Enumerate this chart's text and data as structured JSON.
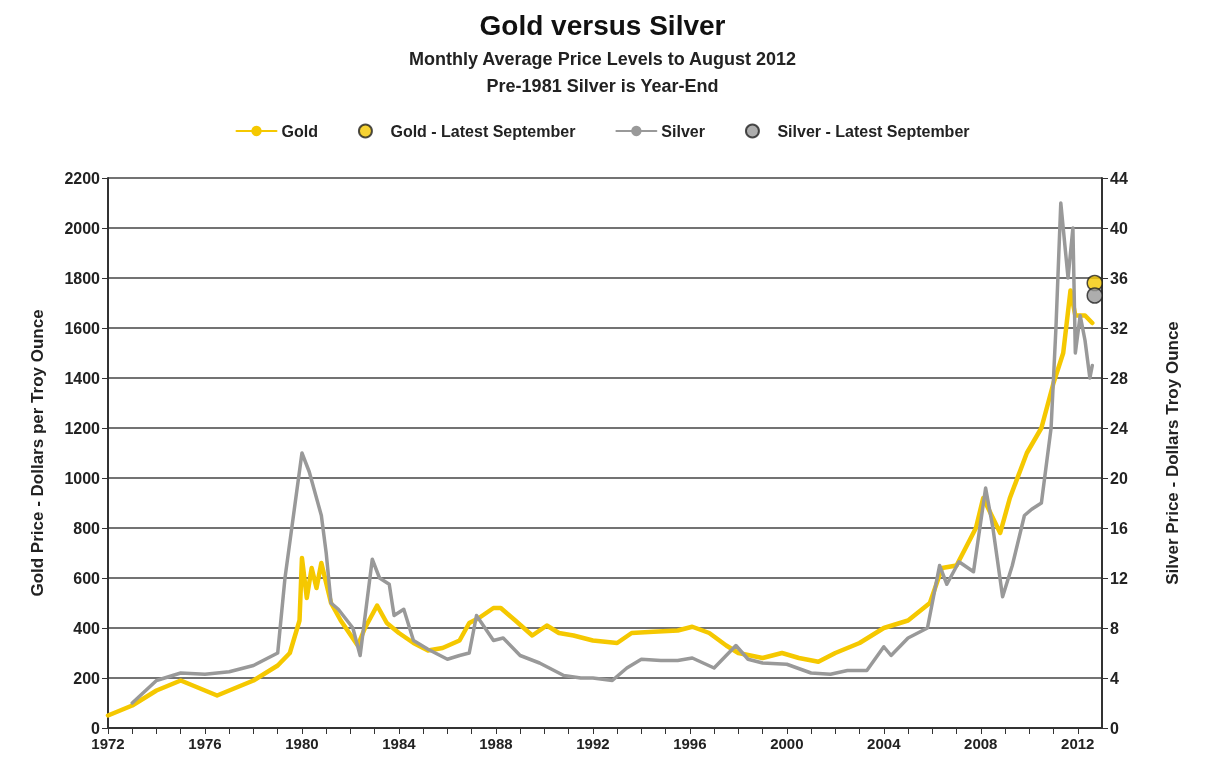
{
  "chart_data": {
    "type": "line",
    "title": "Gold versus Silver",
    "subtitle": "Monthly Average Price Levels to August 2012\nPre-1981 Silver is Year-End",
    "ylabel": "Gold Price - Dollars per Troy Ounce",
    "y2label": "Silver Price - Dollars Troy Ounce",
    "xlim": [
      1972,
      2013
    ],
    "xticks": [
      1972,
      {
        "value": 1973,
        "label": null
      },
      {
        "value": 1974,
        "label": null
      },
      {
        "value": 1975,
        "label": null
      },
      1976,
      {
        "value": 1977,
        "label": null
      },
      {
        "value": 1978,
        "label": null
      },
      {
        "value": 1979,
        "label": null
      },
      1980,
      {
        "value": 1981,
        "label": null
      },
      {
        "value": 1982,
        "label": null
      },
      {
        "value": 1983,
        "label": null
      },
      1984,
      {
        "value": 1985,
        "label": null
      },
      {
        "value": 1986,
        "label": null
      },
      {
        "value": 1987,
        "label": null
      },
      1988,
      {
        "value": 1989,
        "label": null
      },
      {
        "value": 1990,
        "label": null
      },
      {
        "value": 1991,
        "label": null
      },
      1992,
      {
        "value": 1993,
        "label": null
      },
      {
        "value": 1994,
        "label": null
      },
      {
        "value": 1995,
        "label": null
      },
      1996,
      {
        "value": 1997,
        "label": null
      },
      {
        "value": 1998,
        "label": null
      },
      {
        "value": 1999,
        "label": null
      },
      2000,
      {
        "value": 2001,
        "label": null
      },
      {
        "value": 2002,
        "label": null
      },
      {
        "value": 2003,
        "label": null
      },
      2004,
      {
        "value": 2005,
        "label": null
      },
      {
        "value": 2006,
        "label": null
      },
      {
        "value": 2007,
        "label": null
      },
      2008,
      {
        "value": 2009,
        "label": null
      },
      {
        "value": 2010,
        "label": null
      },
      {
        "value": 2011,
        "label": null
      },
      2012
    ],
    "ylim": [
      0,
      2200
    ],
    "yticks": [
      0,
      200,
      400,
      600,
      800,
      1000,
      1200,
      1400,
      1600,
      1800,
      2000,
      2200
    ],
    "y2lim": [
      0,
      44
    ],
    "y2ticks": [
      0,
      4,
      8,
      12,
      16,
      20,
      24,
      28,
      32,
      36,
      40,
      44
    ],
    "grid": "y",
    "legend": "top",
    "line_style": "solid",
    "series": [
      {
        "name": "Gold",
        "color": "#f5c800",
        "marker": "none",
        "x": [
          1972,
          1973,
          1974,
          1975,
          1976.5,
          1977,
          1978,
          1979,
          1979.5,
          1979.9,
          1980.0,
          1980.2,
          1980.4,
          1980.6,
          1980.8,
          1981.2,
          1981.6,
          1982.3,
          1982.6,
          1983.1,
          1983.5,
          1984,
          1984.6,
          1985.2,
          1985.8,
          1986.5,
          1986.9,
          1987.3,
          1987.9,
          1988.2,
          1988.8,
          1989.5,
          1990.1,
          1990.6,
          1991.2,
          1992,
          1993,
          1993.6,
          1994.5,
          1995.5,
          1996.1,
          1996.8,
          1997.5,
          1998,
          1999,
          1999.8,
          2000.5,
          2001.3,
          2002,
          2003,
          2004,
          2005,
          2005.9,
          2006.4,
          2007,
          2007.8,
          2008.1,
          2008.8,
          2009.2,
          2009.9,
          2010.5,
          2011,
          2011.4,
          2011.7,
          2011.9,
          2012.3,
          2012.6
        ],
        "values": [
          50,
          90,
          150,
          190,
          130,
          150,
          190,
          250,
          300,
          430,
          680,
          520,
          640,
          560,
          660,
          500,
          430,
          330,
          400,
          490,
          420,
          380,
          340,
          310,
          320,
          350,
          420,
          440,
          480,
          480,
          430,
          370,
          410,
          380,
          370,
          350,
          340,
          380,
          385,
          390,
          405,
          380,
          330,
          300,
          280,
          300,
          280,
          265,
          300,
          340,
          400,
          430,
          500,
          640,
          650,
          800,
          920,
          780,
          920,
          1100,
          1200,
          1380,
          1500,
          1750,
          1650,
          1650,
          1620
        ]
      },
      {
        "name": "Gold - Latest September",
        "type": "scatter",
        "color": "#f5c800",
        "marker": "circle",
        "x": [
          2012.7
        ],
        "values": [
          1780
        ]
      },
      {
        "name": "Silver",
        "axis": "y2",
        "color": "#999999",
        "marker": "none",
        "x": [
          1973,
          1974,
          1975,
          1976,
          1977,
          1978,
          1979,
          1979.3,
          1980.0,
          1980.3,
          1980.8,
          1981.0,
          1981.2,
          1981.5,
          1982.1,
          1982.4,
          1982.9,
          1983.2,
          1983.6,
          1983.8,
          1984.2,
          1984.6,
          1985.2,
          1986,
          1986.5,
          1986.9,
          1987.2,
          1987.9,
          1988.3,
          1989,
          1989.8,
          1990.8,
          1991.5,
          1992,
          1992.8,
          1993.4,
          1994,
          1994.8,
          1995.5,
          1996.1,
          1997,
          1997.9,
          1998.4,
          1999,
          2000,
          2001,
          2001.8,
          2002.5,
          2003.3,
          2004.0,
          2004.3,
          2005,
          2005.8,
          2006.3,
          2006.6,
          2007.1,
          2007.7,
          2008.2,
          2008.5,
          2008.9,
          2009.3,
          2009.8,
          2010.1,
          2010.5,
          2010.9,
          2011.1,
          2011.3,
          2011.6,
          2011.8,
          2011.9,
          2012.1,
          2012.3,
          2012.5,
          2012.6
        ],
        "values": [
          2,
          3.8,
          4.4,
          4.3,
          4.5,
          5,
          6,
          12,
          22,
          20.5,
          17,
          14,
          10,
          9.5,
          8,
          5.8,
          13.5,
          12,
          11.5,
          9,
          9.5,
          7,
          6.3,
          5.5,
          5.8,
          6,
          9,
          7,
          7.2,
          5.8,
          5.2,
          4.2,
          4,
          4,
          3.8,
          4.8,
          5.5,
          5.4,
          5.4,
          5.6,
          4.8,
          6.6,
          5.5,
          5.2,
          5.1,
          4.4,
          4.3,
          4.6,
          4.6,
          6.5,
          5.8,
          7.2,
          8,
          13,
          11.5,
          13.3,
          12.5,
          19.2,
          16,
          10.5,
          13,
          17,
          17.5,
          18,
          24,
          32,
          42,
          36,
          40,
          30,
          33,
          31,
          28,
          29
        ]
      },
      {
        "name": "Silver - Latest September",
        "type": "scatter",
        "axis": "y2",
        "color": "#999999",
        "marker": "circle",
        "x": [
          2012.7
        ],
        "values": [
          34.6
        ]
      }
    ]
  }
}
